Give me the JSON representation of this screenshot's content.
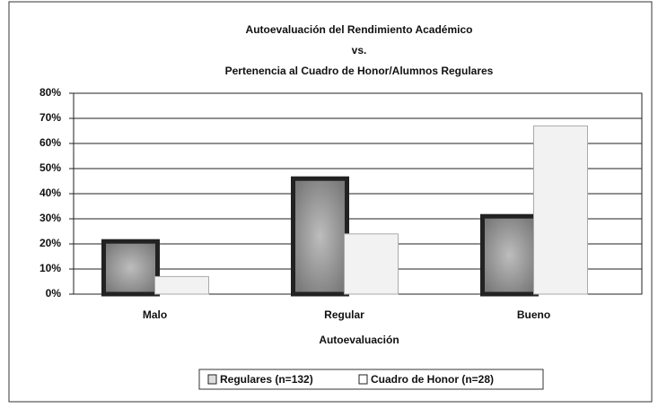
{
  "chart_data": {
    "type": "bar",
    "title": [
      "Autoevaluación del Rendimiento Académico",
      "vs.",
      "Pertenencia al Cuadro de Honor/Alumnos Regulares"
    ],
    "x_label": "Autoevaluación",
    "categories": [
      "Malo",
      "Regular",
      "Bueno"
    ],
    "series": [
      {
        "name": "Regulares (n=132)",
        "color": "#9a9a9a",
        "values": [
          21,
          46,
          31
        ]
      },
      {
        "name": "Cuadro de Honor (n=28)",
        "color": "#f2f2f2",
        "values": [
          7,
          24,
          67
        ]
      }
    ],
    "ylim": [
      0,
      80
    ],
    "yticks": [
      {
        "value": 0,
        "label": "0%"
      },
      {
        "value": 10,
        "label": "10%"
      },
      {
        "value": 20,
        "label": "20%"
      },
      {
        "value": 30,
        "label": "30%"
      },
      {
        "value": 40,
        "label": "40%"
      },
      {
        "value": 50,
        "label": "50%"
      },
      {
        "value": 60,
        "label": "60%"
      },
      {
        "value": 70,
        "label": "70%"
      },
      {
        "value": 80,
        "label": "80%"
      }
    ],
    "grid": true,
    "legend": "bottom"
  }
}
